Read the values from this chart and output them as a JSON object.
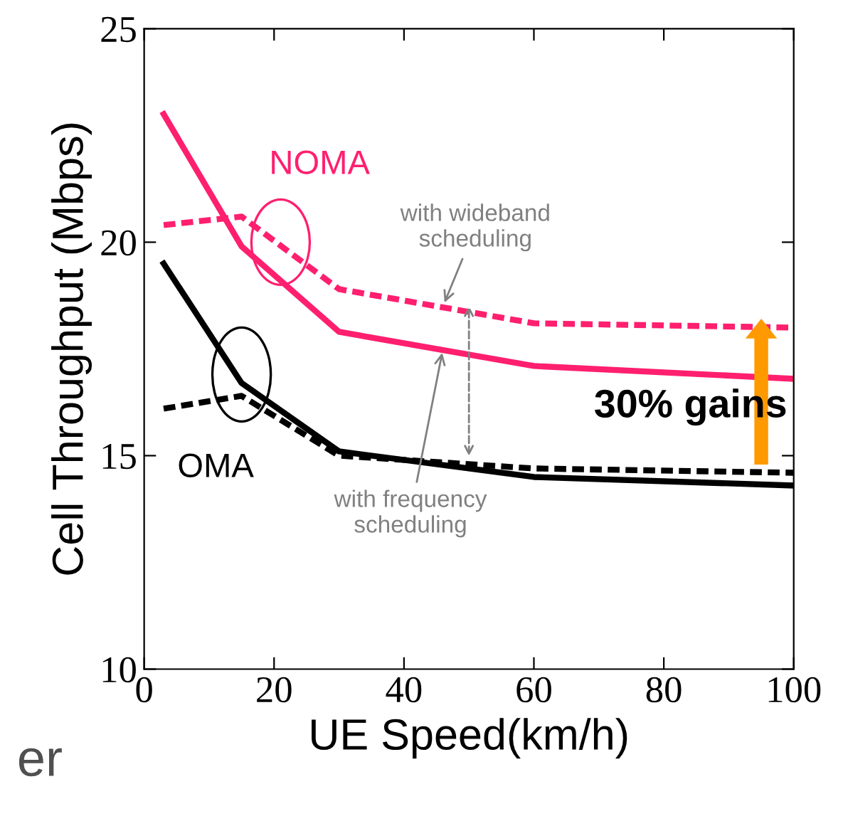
{
  "chart_data": {
    "type": "line",
    "xlabel": "UE Speed(km/h)",
    "ylabel": "Cell Throughput (Mbps)",
    "x": [
      3,
      15,
      30,
      60,
      100
    ],
    "series": [
      {
        "color": "#ff1f6f",
        "line_style": "dashed",
        "values": [
          20.4,
          20.6,
          18.9,
          18.1,
          18.0
        ]
      },
      {
        "color": "#ff1f6f",
        "line_style": "solid",
        "values": [
          23.0,
          19.9,
          17.9,
          17.1,
          16.8
        ]
      },
      {
        "color": "#000000",
        "line_style": "solid",
        "values": [
          19.5,
          16.7,
          15.1,
          14.5,
          14.3
        ]
      },
      {
        "color": "#000000",
        "line_style": "dashed",
        "values": [
          16.1,
          16.4,
          15.0,
          14.7,
          14.6
        ]
      }
    ],
    "xlim": [
      0,
      100
    ],
    "xticks": [
      0,
      20,
      40,
      60,
      80,
      100
    ],
    "ylim": [
      10,
      25
    ],
    "yticks": [
      10,
      15,
      20,
      25
    ],
    "grid": false,
    "legend": false,
    "marker": "none",
    "annotations": [
      "NOMA",
      "OMA",
      {
        "text": "with wideband\nscheduling",
        "x": 46,
        "y": 18.5
      },
      {
        "text": "with frequency\nscheduling",
        "x": 46,
        "y": 17.5
      },
      "30% gains",
      "er"
    ]
  }
}
